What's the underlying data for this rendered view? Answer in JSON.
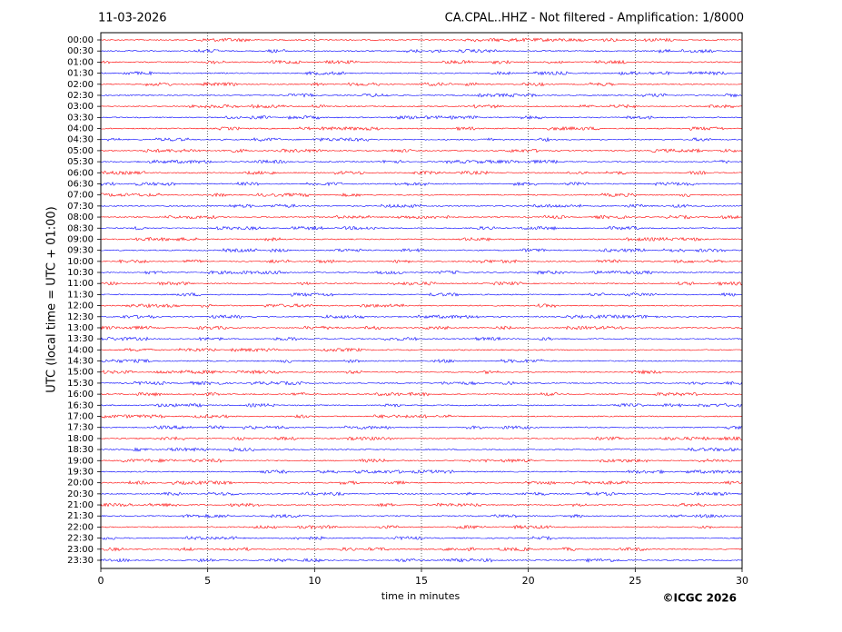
{
  "chart_data": {
    "type": "helicorder",
    "date": "11-03-2026",
    "title": "CA.CPAL..HHZ - Not filtered - Amplification: 1/8000",
    "y_label": "UTC (local time = UTC + 01:00)",
    "x_label": "time in minutes",
    "copyright": "©ICGC 2026",
    "categories": [
      "00:00",
      "00:30",
      "01:00",
      "01:30",
      "02:00",
      "02:30",
      "03:00",
      "03:30",
      "04:00",
      "04:30",
      "05:00",
      "05:30",
      "06:00",
      "06:30",
      "07:00",
      "07:30",
      "08:00",
      "08:30",
      "09:00",
      "09:30",
      "10:00",
      "10:30",
      "11:00",
      "11:30",
      "12:00",
      "12:30",
      "13:00",
      "13:30",
      "14:00",
      "14:30",
      "15:00",
      "15:30",
      "16:00",
      "16:30",
      "17:00",
      "17:30",
      "18:00",
      "18:30",
      "19:00",
      "19:30",
      "20:00",
      "20:30",
      "21:00",
      "21:30",
      "22:00",
      "22:30",
      "23:00",
      "23:30"
    ],
    "trace_colors": [
      "#ff0000",
      "#0000ff"
    ],
    "xlim": [
      0,
      30
    ],
    "xticks": [
      0,
      5,
      10,
      15,
      20,
      25,
      30
    ],
    "grid": true
  }
}
